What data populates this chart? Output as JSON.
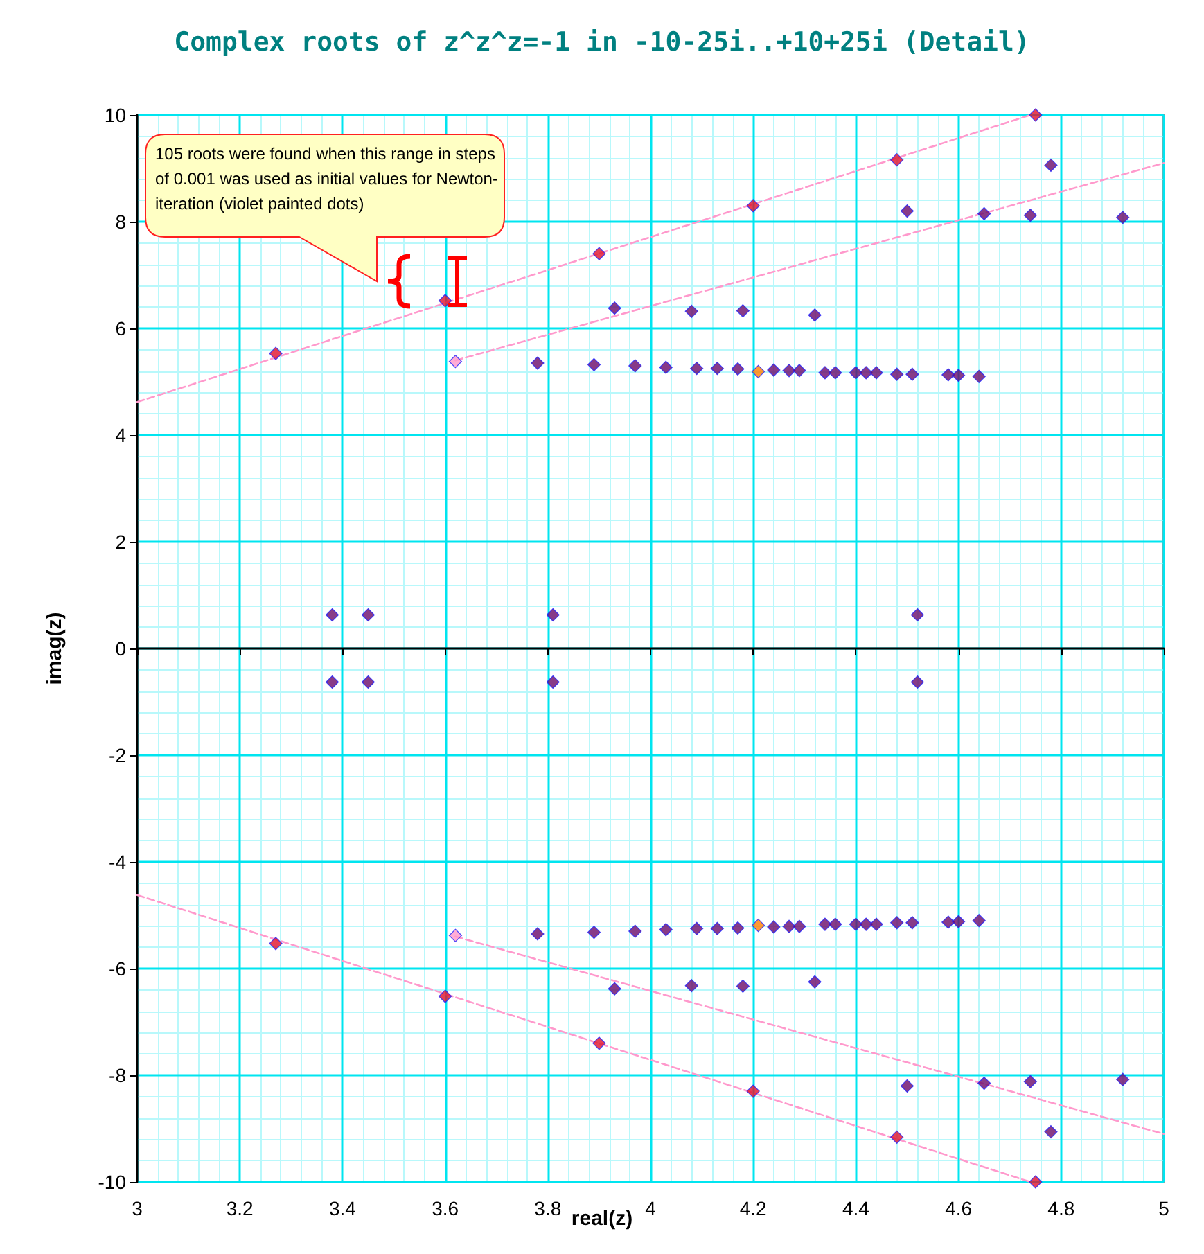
{
  "chart_data": {
    "type": "scatter",
    "title": "Complex roots of z^z^z=-1 in -10-25i..+10+25i (Detail)",
    "xlabel": "real(z)",
    "ylabel": "imag(z)",
    "annotations": [
      "105 roots were found when this range in steps of 0.001 was used as initial values for Newton-iteration (violet painted dots)"
    ],
    "xlim": [
      3,
      5
    ],
    "ylim": [
      -10,
      10
    ],
    "xticks": [
      3,
      {
        "value": 3.04,
        "label": null
      },
      {
        "value": 3.08,
        "label": null
      },
      {
        "value": 3.12,
        "label": null
      },
      {
        "value": 3.16,
        "label": null
      },
      3.2,
      {
        "value": 3.24,
        "label": null
      },
      {
        "value": 3.28,
        "label": null
      },
      {
        "value": 3.32,
        "label": null
      },
      {
        "value": 3.36,
        "label": null
      },
      3.4,
      {
        "value": 3.44,
        "label": null
      },
      {
        "value": 3.48,
        "label": null
      },
      {
        "value": 3.52,
        "label": null
      },
      {
        "value": 3.56,
        "label": null
      },
      3.6,
      {
        "value": 3.64,
        "label": null
      },
      {
        "value": 3.68,
        "label": null
      },
      {
        "value": 3.72,
        "label": null
      },
      {
        "value": 3.76,
        "label": null
      },
      3.8,
      {
        "value": 3.84,
        "label": null
      },
      {
        "value": 3.88,
        "label": null
      },
      {
        "value": 3.92,
        "label": null
      },
      {
        "value": 3.96,
        "label": null
      },
      4,
      {
        "value": 4.04,
        "label": null
      },
      {
        "value": 4.08,
        "label": null
      },
      {
        "value": 4.12,
        "label": null
      },
      {
        "value": 4.16,
        "label": null
      },
      4.2,
      {
        "value": 4.24,
        "label": null
      },
      {
        "value": 4.28,
        "label": null
      },
      {
        "value": 4.32,
        "label": null
      },
      {
        "value": 4.36,
        "label": null
      },
      4.4,
      {
        "value": 4.44,
        "label": null
      },
      {
        "value": 4.48,
        "label": null
      },
      {
        "value": 4.52,
        "label": null
      },
      {
        "value": 4.56,
        "label": null
      },
      4.6,
      {
        "value": 4.64,
        "label": null
      },
      {
        "value": 4.68,
        "label": null
      },
      {
        "value": 4.72,
        "label": null
      },
      {
        "value": 4.76,
        "label": null
      },
      4.8,
      {
        "value": 4.84,
        "label": null
      },
      {
        "value": 4.88,
        "label": null
      },
      {
        "value": 4.92,
        "label": null
      },
      {
        "value": 4.96,
        "label": null
      },
      5
    ],
    "yticks": [
      -10,
      {
        "value": -9.6,
        "label": null
      },
      {
        "value": -9.2,
        "label": null
      },
      {
        "value": -8.8,
        "label": null
      },
      {
        "value": -8.4,
        "label": null
      },
      -8,
      {
        "value": -7.6,
        "label": null
      },
      {
        "value": -7.2,
        "label": null
      },
      {
        "value": -6.8,
        "label": null
      },
      {
        "value": -6.4,
        "label": null
      },
      -6,
      {
        "value": -5.6,
        "label": null
      },
      {
        "value": -5.2,
        "label": null
      },
      {
        "value": -4.8,
        "label": null
      },
      {
        "value": -4.4,
        "label": null
      },
      -4,
      {
        "value": -3.6,
        "label": null
      },
      {
        "value": -3.2,
        "label": null
      },
      {
        "value": -2.8,
        "label": null
      },
      {
        "value": -2.4,
        "label": null
      },
      -2,
      {
        "value": -1.6,
        "label": null
      },
      {
        "value": -1.2,
        "label": null
      },
      {
        "value": -0.8,
        "label": null
      },
      {
        "value": -0.4,
        "label": null
      },
      0,
      {
        "value": 0.4,
        "label": null
      },
      {
        "value": 0.8,
        "label": null
      },
      {
        "value": 1.2,
        "label": null
      },
      {
        "value": 1.6,
        "label": null
      },
      2,
      {
        "value": 2.4,
        "label": null
      },
      {
        "value": 2.8,
        "label": null
      },
      {
        "value": 3.2,
        "label": null
      },
      {
        "value": 3.6,
        "label": null
      },
      4,
      {
        "value": 4.4,
        "label": null
      },
      {
        "value": 4.8,
        "label": null
      },
      {
        "value": 5.2,
        "label": null
      },
      {
        "value": 5.6,
        "label": null
      },
      6,
      {
        "value": 6.4,
        "label": null
      },
      {
        "value": 6.8,
        "label": null
      },
      {
        "value": 7.2,
        "label": null
      },
      {
        "value": 7.6,
        "label": null
      },
      8,
      {
        "value": 8.4,
        "label": null
      },
      {
        "value": 8.8,
        "label": null
      },
      {
        "value": 9.2,
        "label": null
      },
      {
        "value": 9.6,
        "label": null
      },
      10
    ],
    "grid": true,
    "marker": "diamond",
    "series": [
      {
        "type": "line",
        "color": "#ff99cc",
        "line_style": "dashed",
        "marker": "none",
        "x": [
          3,
          4.74
        ],
        "values": [
          4.62,
          10
        ]
      },
      {
        "type": "line",
        "color": "#ff99cc",
        "line_style": "dashed",
        "marker": "none",
        "x": [
          3.62,
          5
        ],
        "values": [
          5.4,
          9.1
        ]
      },
      {
        "type": "line",
        "color": "#ff99cc",
        "line_style": "dashed",
        "marker": "none",
        "x": [
          3,
          4.74
        ],
        "values": [
          -4.62,
          -10
        ]
      },
      {
        "type": "line",
        "color": "#ff99cc",
        "line_style": "dashed",
        "marker": "none",
        "x": [
          3.62,
          5
        ],
        "values": [
          -5.4,
          -9.1
        ]
      },
      {
        "color": "#6a0a6a",
        "x": [
          3.93,
          4.08,
          4.18,
          4.32,
          4.5,
          4.65,
          4.74,
          4.78,
          4.92,
          3.78,
          3.89,
          3.97,
          4.03,
          4.09,
          4.13,
          4.17,
          4.24,
          4.27,
          4.29,
          4.34,
          4.36,
          4.4,
          4.42,
          4.44,
          4.48,
          4.51,
          4.58,
          4.6,
          4.64,
          3.38,
          3.45,
          3.81,
          4.52,
          3.93,
          4.08,
          4.18,
          4.32,
          4.5,
          4.65,
          4.74,
          4.78,
          4.92,
          3.78,
          3.89,
          3.97,
          4.03,
          4.09,
          4.13,
          4.17,
          4.24,
          4.27,
          4.29,
          4.34,
          4.36,
          4.4,
          4.42,
          4.44,
          4.48,
          4.51,
          4.58,
          4.6,
          4.64,
          3.38,
          3.45,
          3.81,
          4.52
        ],
        "values": [
          6.38,
          6.32,
          6.33,
          6.25,
          8.2,
          8.15,
          8.12,
          9.06,
          8.08,
          5.35,
          5.32,
          5.3,
          5.27,
          5.25,
          5.25,
          5.24,
          5.22,
          5.21,
          5.21,
          5.17,
          5.17,
          5.17,
          5.17,
          5.17,
          5.14,
          5.14,
          5.13,
          5.12,
          5.1,
          0.63,
          0.63,
          0.63,
          0.63,
          -6.38,
          -6.32,
          -6.33,
          -6.25,
          -8.2,
          -8.15,
          -8.12,
          -9.06,
          -8.08,
          -5.35,
          -5.32,
          -5.3,
          -5.27,
          -5.25,
          -5.25,
          -5.24,
          -5.22,
          -5.21,
          -5.21,
          -5.17,
          -5.17,
          -5.17,
          -5.17,
          -5.17,
          -5.14,
          -5.14,
          -5.13,
          -5.12,
          -5.1,
          -0.63,
          -0.63,
          -0.63,
          -0.63
        ]
      },
      {
        "color": "#e0102a",
        "x": [
          3.27,
          3.6,
          3.9,
          4.2,
          4.48,
          4.75,
          3.27,
          3.6,
          3.9,
          4.2,
          4.48,
          4.75
        ],
        "values": [
          5.53,
          6.52,
          7.4,
          8.3,
          9.16,
          10,
          -5.53,
          -6.52,
          -7.4,
          -8.3,
          -9.16,
          -10
        ]
      },
      {
        "color": "#ff99cc",
        "x": [
          3.62,
          3.62
        ],
        "values": [
          5.38,
          -5.38
        ]
      },
      {
        "color": "#ff8000",
        "x": [
          4.21,
          4.21
        ],
        "values": [
          5.19,
          -5.19
        ]
      }
    ]
  }
}
